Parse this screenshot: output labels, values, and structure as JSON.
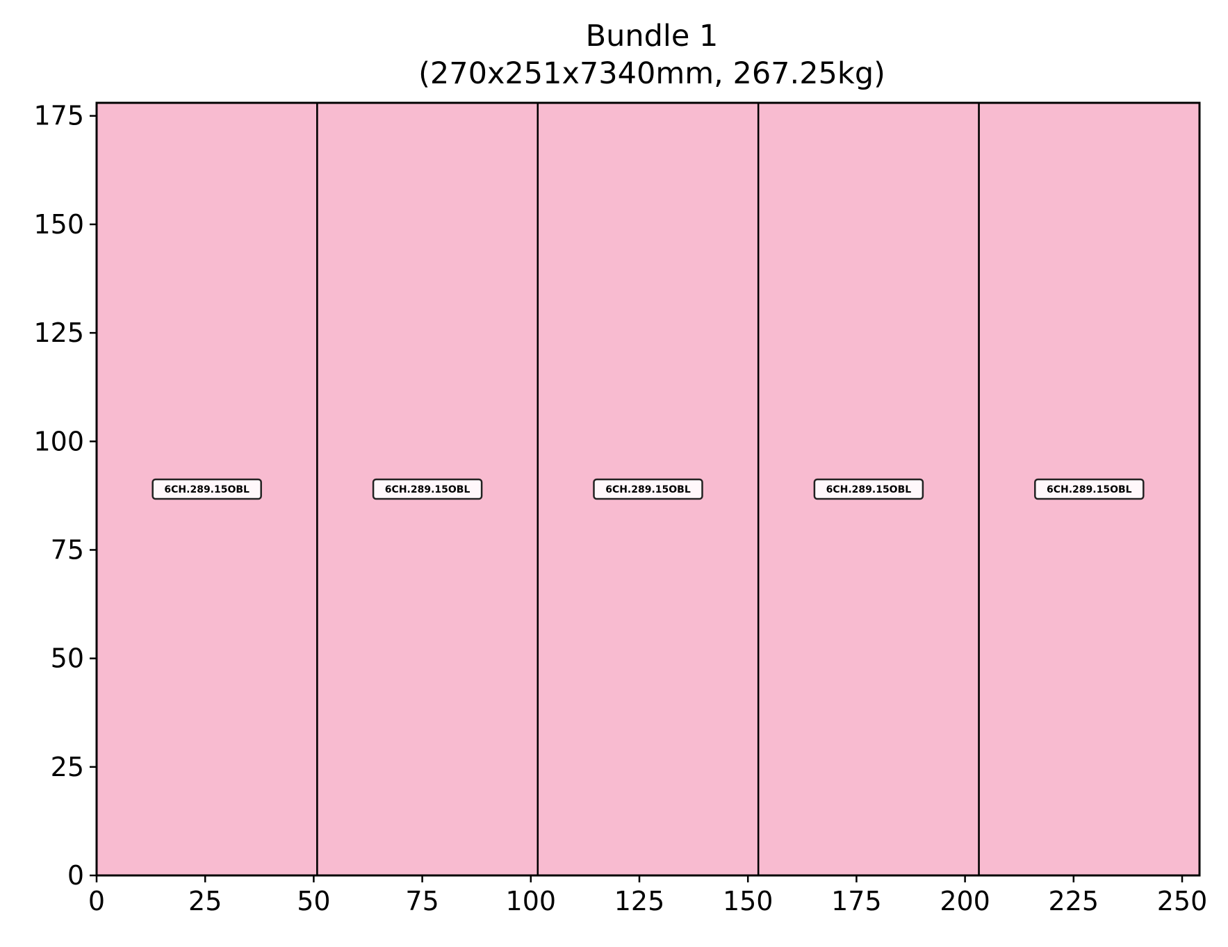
{
  "chart_data": {
    "type": "bar",
    "title": "Bundle 1",
    "subtitle": "(270x251x7340mm, 267.25kg)",
    "xlabel": "",
    "ylabel": "",
    "xlim": [
      0,
      254
    ],
    "ylim": [
      0,
      178
    ],
    "x_ticks": [
      0,
      25,
      50,
      75,
      100,
      125,
      150,
      175,
      200,
      225,
      250
    ],
    "y_ticks": [
      0,
      25,
      50,
      75,
      100,
      125,
      150,
      175
    ],
    "grid": false,
    "legend": "none",
    "fill_color": "#f8bbd0",
    "edge_color": "#000000",
    "items": [
      {
        "label": "6CH.289.15OBL",
        "x0": 0,
        "x1": 50.8,
        "y0": 0,
        "y1": 178,
        "label_y": 89
      },
      {
        "label": "6CH.289.15OBL",
        "x0": 50.8,
        "x1": 101.6,
        "y0": 0,
        "y1": 178,
        "label_y": 89
      },
      {
        "label": "6CH.289.15OBL",
        "x0": 101.6,
        "x1": 152.4,
        "y0": 0,
        "y1": 178,
        "label_y": 89
      },
      {
        "label": "6CH.289.15OBL",
        "x0": 152.4,
        "x1": 203.2,
        "y0": 0,
        "y1": 178,
        "label_y": 89
      },
      {
        "label": "6CH.289.15OBL",
        "x0": 203.2,
        "x1": 254,
        "y0": 0,
        "y1": 178,
        "label_y": 89
      }
    ]
  }
}
